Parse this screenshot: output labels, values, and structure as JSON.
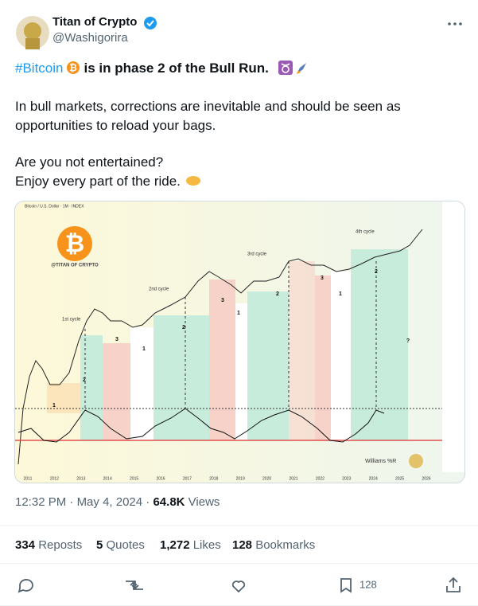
{
  "author": {
    "name": "Titan of Crypto",
    "handle": "@Washigorira"
  },
  "post": {
    "hashtag": "#Bitcoin",
    "headline": "is in phase 2 of the Bull Run.",
    "paragraphs": [
      "In bull markets, corrections are inevitable and should be seen as",
      "opportunities to reload your bags.",
      "Are you not entertained?",
      "Enjoy every part of the ride."
    ]
  },
  "image": {
    "title": "Bitcoin / U.S. Dollar · 1M · INDEX",
    "watermark": "@TITAN OF CRYPTO",
    "cycles": [
      "1st cycle",
      "2nd cycle",
      "3rd cycle",
      "4th cycle"
    ],
    "phase_labels": [
      "1",
      "2",
      "3",
      "1",
      "2",
      "3",
      "1",
      "2",
      "3",
      "1",
      "2",
      "?"
    ],
    "indicator": "Williams %R",
    "years": [
      "2011",
      "2012",
      "2013",
      "2014",
      "2015",
      "2016",
      "2017",
      "2018",
      "2019",
      "2020",
      "2021",
      "2022",
      "2023",
      "2024",
      "2025",
      "2026"
    ]
  },
  "meta": {
    "time": "12:32 PM",
    "date": "May 4, 2024",
    "views": "64.8K",
    "views_label": "Views"
  },
  "stats": [
    {
      "value": "334",
      "label": "Reposts"
    },
    {
      "value": "5",
      "label": "Quotes"
    },
    {
      "value": "1,272",
      "label": "Likes"
    },
    {
      "value": "128",
      "label": "Bookmarks"
    }
  ],
  "actions": {
    "bookmarks": "128"
  }
}
